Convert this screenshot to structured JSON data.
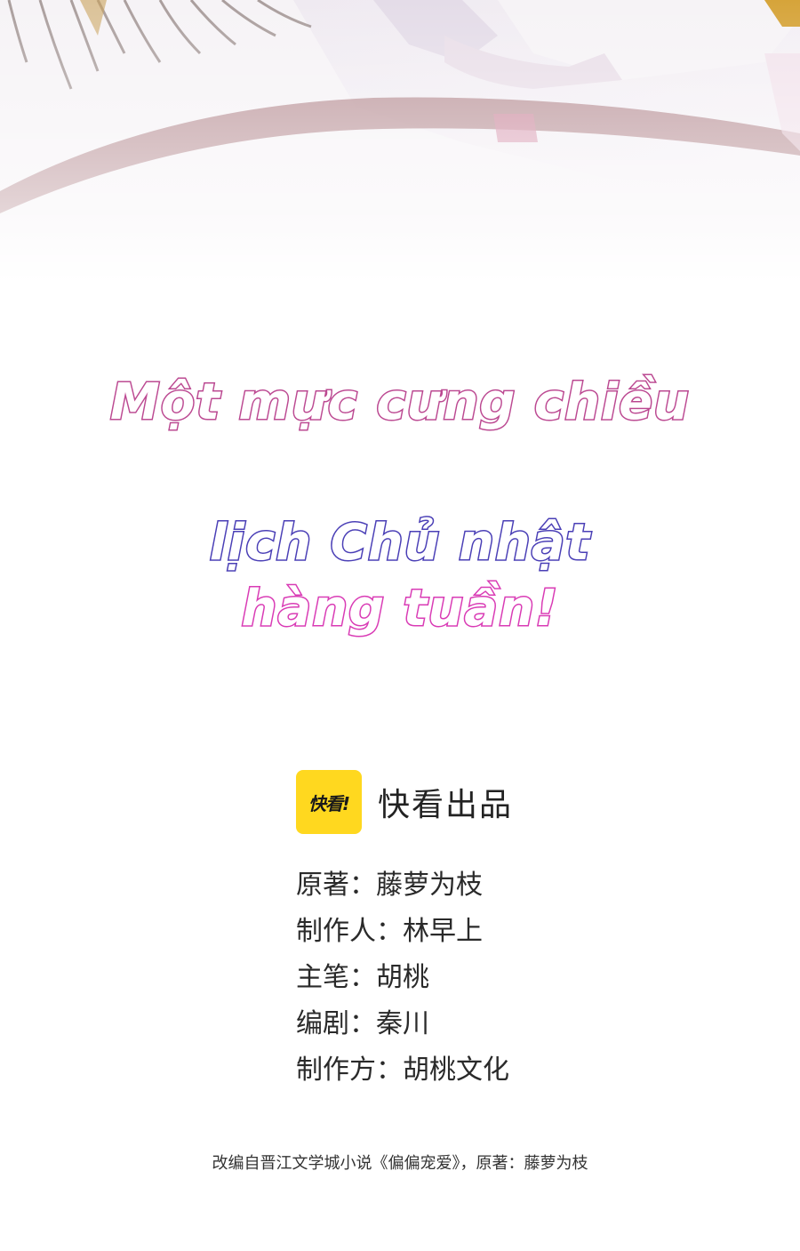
{
  "title": {
    "line1": "Một mực cưng chiều",
    "line2": "lịch Chủ nhật",
    "line3": "hàng tuần!"
  },
  "brand": {
    "logo_text": "快看!",
    "name": "快看出品",
    "logo_color": "#ffd81f"
  },
  "credits": [
    "原著：藤萝为枝",
    "制作人：林早上",
    "主笔：胡桃",
    "编剧：秦川",
    "制作方：胡桃文化"
  ],
  "footer": "改编自晋江文学城小说《偏偏宠爱》，原著：藤萝为枝",
  "colors": {
    "title_line1_outline": "#b8468f",
    "title_line2_outline": "#4a3fb6",
    "title_line3_outline": "#d93bb5"
  }
}
